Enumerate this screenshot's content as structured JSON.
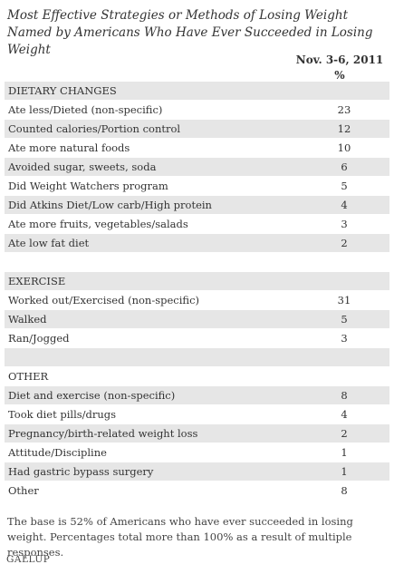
{
  "title": "Most Effective Strategies or Methods of Losing Weight Named by Americans Who Have Ever Succeeded in Losing Weight",
  "column_header": {
    "date": "Nov. 3-6, 2011",
    "unit": "%"
  },
  "rows": [
    {
      "label": "DIETARY CHANGES",
      "value": "",
      "kind": "section"
    },
    {
      "label": "Ate less/Dieted (non-specific)",
      "value": "23"
    },
    {
      "label": "Counted calories/Portion control",
      "value": "12"
    },
    {
      "label": "Ate more natural foods",
      "value": "10"
    },
    {
      "label": "Avoided sugar, sweets, soda",
      "value": "6"
    },
    {
      "label": "Did Weight Watchers program",
      "value": "5"
    },
    {
      "label": "Did Atkins Diet/Low carb/High protein",
      "value": "4"
    },
    {
      "label": "Ate more fruits, vegetables/salads",
      "value": "3"
    },
    {
      "label": "Ate low fat diet",
      "value": "2"
    },
    {
      "label": "",
      "value": "",
      "kind": "spacer"
    },
    {
      "label": "EXERCISE",
      "value": "",
      "kind": "section"
    },
    {
      "label": "Worked out/Exercised (non-specific)",
      "value": "31"
    },
    {
      "label": "Walked",
      "value": "5"
    },
    {
      "label": "Ran/Jogged",
      "value": "3"
    },
    {
      "label": "",
      "value": "",
      "kind": "spacer"
    },
    {
      "label": "OTHER",
      "value": "",
      "kind": "section"
    },
    {
      "label": "Diet and exercise (non-specific)",
      "value": "8"
    },
    {
      "label": "Took diet pills/drugs",
      "value": "4"
    },
    {
      "label": "Pregnancy/birth-related weight loss",
      "value": "2"
    },
    {
      "label": "Attitude/Discipline",
      "value": "1"
    },
    {
      "label": "Had gastric bypass surgery",
      "value": "1"
    },
    {
      "label": "Other",
      "value": "8"
    }
  ],
  "footnote": "The base is 52% of Americans who have ever succeeded in losing weight. Percentages total more than 100% as a result of multiple responses.",
  "logo": "GALLUP",
  "colors": {
    "shade": "#e6e6e6",
    "white": "#ffffff",
    "text": "#333333"
  }
}
